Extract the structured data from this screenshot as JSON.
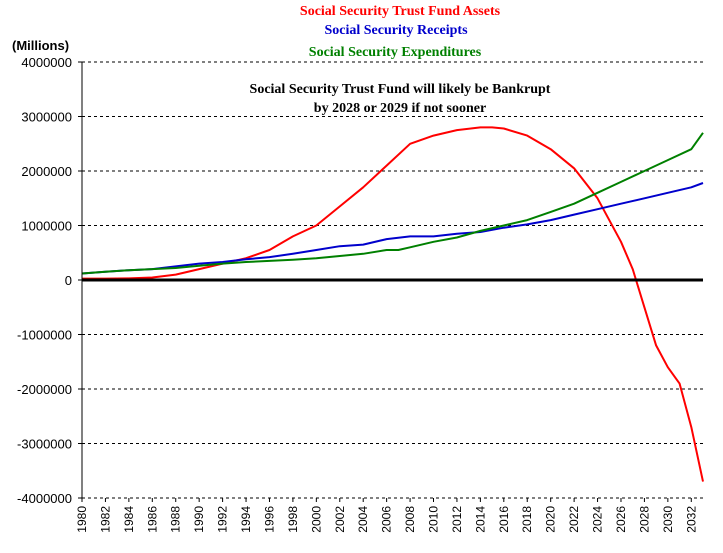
{
  "chart_data": {
    "type": "line",
    "title_lines": [
      {
        "text": "Social Security Trust Fund Assets",
        "color": "#ff0000"
      },
      {
        "text": "Social Security Receipts",
        "color": "#0000cc"
      },
      {
        "text": "Social Security Expenditures",
        "color": "#008000"
      }
    ],
    "ylabel": "(Millions)",
    "annotation": [
      "Social Security Trust Fund will likely be Bankrupt",
      "by 2028 or 2029 if not sooner"
    ],
    "ylim": [
      -4000000,
      4000000
    ],
    "yticks": [
      4000000,
      3000000,
      2000000,
      1000000,
      0,
      -1000000,
      -2000000,
      -3000000,
      -4000000
    ],
    "xlim": [
      1980,
      2033
    ],
    "xticks": [
      1980,
      1982,
      1984,
      1986,
      1988,
      1990,
      1992,
      1994,
      1996,
      1998,
      2000,
      2002,
      2004,
      2006,
      2008,
      2010,
      2012,
      2014,
      2016,
      2018,
      2020,
      2022,
      2024,
      2026,
      2028,
      2030,
      2032
    ],
    "grid": "horizontal-dashed",
    "series": [
      {
        "name": "Social Security Trust Fund Assets",
        "color": "#ff0000",
        "x": [
          1980,
          1982,
          1984,
          1986,
          1988,
          1990,
          1992,
          1994,
          1996,
          1998,
          2000,
          2002,
          2004,
          2006,
          2008,
          2010,
          2012,
          2014,
          2015,
          2016,
          2018,
          2020,
          2022,
          2024,
          2026,
          2027,
          2028,
          2029,
          2030,
          2031,
          2032,
          2033
        ],
        "values": [
          25000,
          25000,
          30000,
          45000,
          100000,
          200000,
          300000,
          400000,
          550000,
          800000,
          1000000,
          1350000,
          1700000,
          2100000,
          2500000,
          2650000,
          2750000,
          2800000,
          2800000,
          2780000,
          2650000,
          2400000,
          2050000,
          1500000,
          700000,
          200000,
          -500000,
          -1200000,
          -1600000,
          -1900000,
          -2700000,
          -3700000
        ]
      },
      {
        "name": "Social Security Receipts",
        "color": "#0000cc",
        "x": [
          1980,
          1982,
          1984,
          1986,
          1988,
          1990,
          1992,
          1994,
          1996,
          1998,
          2000,
          2002,
          2004,
          2006,
          2008,
          2010,
          2012,
          2014,
          2016,
          2018,
          2020,
          2022,
          2024,
          2026,
          2028,
          2030,
          2032,
          2033
        ],
        "values": [
          120000,
          150000,
          180000,
          200000,
          250000,
          300000,
          330000,
          380000,
          420000,
          480000,
          550000,
          620000,
          650000,
          750000,
          800000,
          800000,
          850000,
          880000,
          960000,
          1020000,
          1100000,
          1200000,
          1300000,
          1400000,
          1500000,
          1600000,
          1700000,
          1780000
        ]
      },
      {
        "name": "Social Security Expenditures",
        "color": "#008000",
        "x": [
          1980,
          1982,
          1984,
          1986,
          1988,
          1990,
          1992,
          1994,
          1996,
          1998,
          2000,
          2002,
          2004,
          2006,
          2007,
          2008,
          2010,
          2012,
          2014,
          2016,
          2018,
          2020,
          2022,
          2024,
          2026,
          2028,
          2030,
          2032,
          2033
        ],
        "values": [
          120000,
          150000,
          180000,
          200000,
          220000,
          260000,
          300000,
          330000,
          350000,
          370000,
          400000,
          440000,
          480000,
          550000,
          550000,
          600000,
          700000,
          780000,
          900000,
          1000000,
          1100000,
          1250000,
          1400000,
          1600000,
          1800000,
          2000000,
          2200000,
          2400000,
          2700000
        ]
      }
    ]
  }
}
